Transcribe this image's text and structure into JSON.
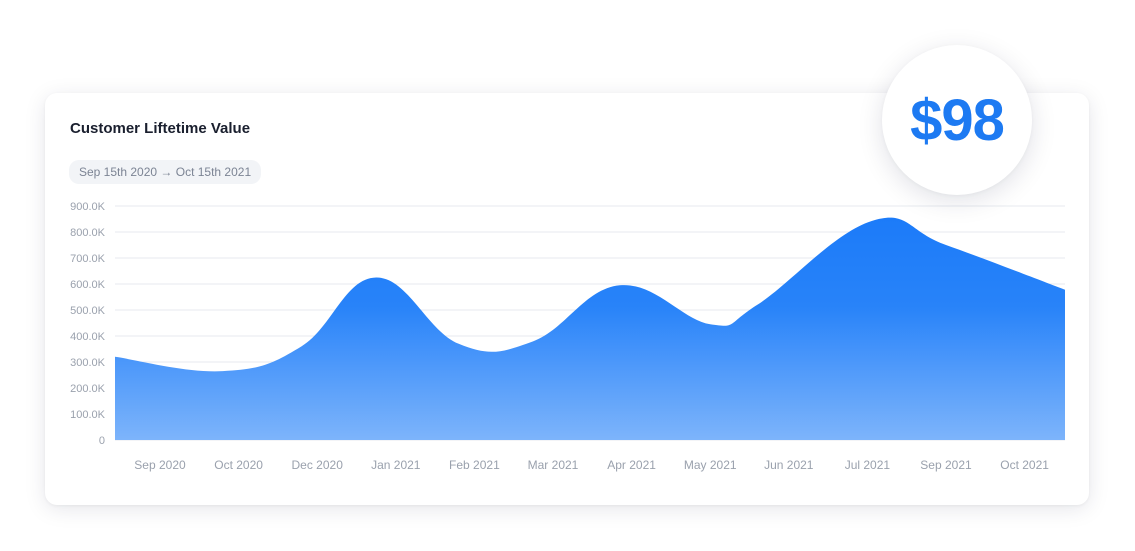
{
  "card": {
    "title": "Customer Liftetime Value",
    "date_range": "Sep 15th 2020 → Oct 15th 2021"
  },
  "highlight": {
    "value": "$98",
    "color": "#1d7af2"
  },
  "chart_data": {
    "type": "area",
    "title": "Customer Liftetime Value",
    "xlabel": "",
    "ylabel": "",
    "y_ticks": [
      "0",
      "100.0K",
      "200.0K",
      "300.0K",
      "400.0K",
      "500.0K",
      "600.0K",
      "700.0K",
      "800.0K",
      "900.0K"
    ],
    "ylim": [
      0,
      900000
    ],
    "x_ticks": [
      "Sep 2020",
      "Oct 2020",
      "Dec 2020",
      "Jan 2021",
      "Feb 2021",
      "Mar 2021",
      "Apr 2021",
      "May 2021",
      "Jun 2021",
      "Jul 2021",
      "Sep 2021",
      "Oct 2021"
    ],
    "grid": true,
    "series": [
      {
        "values": [
          [
            0.0,
            320000
          ],
          [
            0.8,
            265000
          ],
          [
            1.8,
            360000
          ],
          [
            2.75,
            625000
          ],
          [
            3.8,
            370000
          ],
          [
            4.75,
            380000
          ],
          [
            5.85,
            595000
          ],
          [
            7.0,
            445000
          ],
          [
            7.6,
            520000
          ],
          [
            9.05,
            842000
          ],
          [
            10.0,
            750000
          ],
          [
            11.0,
            578000
          ]
        ]
      }
    ],
    "colors": {
      "fill_top": "#1c7bf9",
      "fill_bottom": "#7db4fb"
    }
  }
}
